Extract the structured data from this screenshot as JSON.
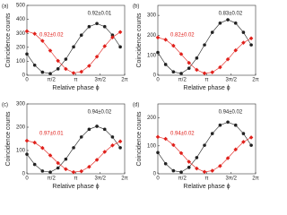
{
  "chart_data": [
    {
      "type": "scatter",
      "panel_label": "(a)",
      "x_label": "Relative phase ϕ",
      "y_label": "Coincidence counts",
      "x": [
        0,
        0.5,
        1,
        1.5,
        2,
        2.5,
        3,
        3.5,
        4,
        4.5,
        5,
        5.5,
        6
      ],
      "xlim": [
        0,
        6.2832
      ],
      "xticks": [
        0,
        {
          "value": 1.5708,
          "label": "π/2"
        },
        {
          "value": 3.1416,
          "label": "π"
        },
        {
          "value": 4.7124,
          "label": "3π/2"
        },
        {
          "value": 6.2832,
          "label": "2π"
        }
      ],
      "ylim": [
        0,
        500
      ],
      "yticks": [
        0,
        100,
        200,
        300,
        400,
        500
      ],
      "series": [
        {
          "color": "#222222",
          "marker": "circle",
          "annotation": "0.92±0.01",
          "values": [
            152,
            72,
            22,
            12,
            46,
            115,
            203,
            287,
            348,
            370,
            348,
            287,
            203
          ]
        },
        {
          "color": "#e0201b",
          "marker": "diamond",
          "annotation": "0.92±0.02",
          "values": [
            315,
            297,
            246,
            176,
            103,
            45,
            16,
            25,
            67,
            133,
            208,
            271,
            309
          ]
        }
      ]
    },
    {
      "type": "scatter",
      "panel_label": "(b)",
      "x_label": "Relative phase ϕ",
      "y_label": "Coincidence counts",
      "x": [
        0,
        0.5,
        1,
        1.5,
        2,
        2.5,
        3,
        3.5,
        4,
        4.5,
        5,
        5.5,
        6
      ],
      "xlim": [
        0,
        6.2832
      ],
      "xticks": [
        0,
        {
          "value": 1.5708,
          "label": "π/2"
        },
        {
          "value": 3.1416,
          "label": "π"
        },
        {
          "value": 4.7124,
          "label": "3π/2"
        },
        {
          "value": 6.2832,
          "label": "2π"
        }
      ],
      "ylim": [
        0,
        350
      ],
      "yticks": [
        0,
        100,
        200,
        300
      ],
      "series": [
        {
          "color": "#222222",
          "marker": "circle",
          "annotation": "0.83±0.02",
          "values": [
            114,
            54,
            17,
            9,
            35,
            86,
            152,
            215,
            261,
            278,
            261,
            215,
            152
          ]
        },
        {
          "color": "#e0201b",
          "marker": "diamond",
          "annotation": "0.82±0.02",
          "values": [
            189,
            178,
            148,
            106,
            62,
            27,
            10,
            15,
            40,
            80,
            125,
            163,
            185
          ]
        }
      ]
    },
    {
      "type": "scatter",
      "panel_label": "(c)",
      "x_label": "Relative phase ϕ",
      "y_label": "Coincidence counts",
      "x": [
        0,
        0.5,
        1,
        1.5,
        2,
        2.5,
        3,
        3.5,
        4,
        4.5,
        5,
        5.5,
        6
      ],
      "xlim": [
        0,
        6.2832
      ],
      "xticks": [
        0,
        {
          "value": 1.5708,
          "label": "π/2"
        },
        {
          "value": 3.1416,
          "label": "π"
        },
        {
          "value": 4.7124,
          "label": "3π/2"
        },
        {
          "value": 6.2832,
          "label": "2π"
        }
      ],
      "ylim": [
        0,
        300
      ],
      "yticks": [
        0,
        100,
        200,
        300
      ],
      "series": [
        {
          "color": "#222222",
          "marker": "circle",
          "annotation": "0.94±0.02",
          "values": [
            84,
            40,
            12,
            7,
            25,
            63,
            112,
            158,
            191,
            204,
            191,
            158,
            112
          ]
        },
        {
          "color": "#e0201b",
          "marker": "diamond",
          "annotation": "0.97±0.01",
          "values": [
            142,
            134,
            111,
            79,
            46,
            20,
            7,
            11,
            30,
            60,
            94,
            122,
            139
          ]
        }
      ]
    },
    {
      "type": "scatter",
      "panel_label": "(d)",
      "x_label": "Relative phase ϕ",
      "y_label": "Coincidence counts",
      "x": [
        0,
        0.5,
        1,
        1.5,
        2,
        2.5,
        3,
        3.5,
        4,
        4.5,
        5,
        5.5,
        6
      ],
      "xlim": [
        0,
        6.2832
      ],
      "xticks": [
        0,
        {
          "value": 1.5708,
          "label": "π/2"
        },
        {
          "value": 3.1416,
          "label": "π"
        },
        {
          "value": 4.7124,
          "label": "3π/2"
        },
        {
          "value": 6.2832,
          "label": "2π"
        }
      ],
      "ylim": [
        0,
        250
      ],
      "yticks": [
        0,
        100,
        200
      ],
      "series": [
        {
          "color": "#222222",
          "marker": "circle",
          "annotation": "0.94±0.02",
          "values": [
            76,
            36,
            11,
            6,
            23,
            58,
            102,
            144,
            174,
            185,
            174,
            144,
            102
          ]
        },
        {
          "color": "#e0201b",
          "marker": "diamond",
          "annotation": "0.94±0.02",
          "values": [
            132,
            125,
            103,
            74,
            43,
            19,
            7,
            11,
            28,
            56,
            87,
            114,
            130
          ]
        }
      ]
    }
  ]
}
